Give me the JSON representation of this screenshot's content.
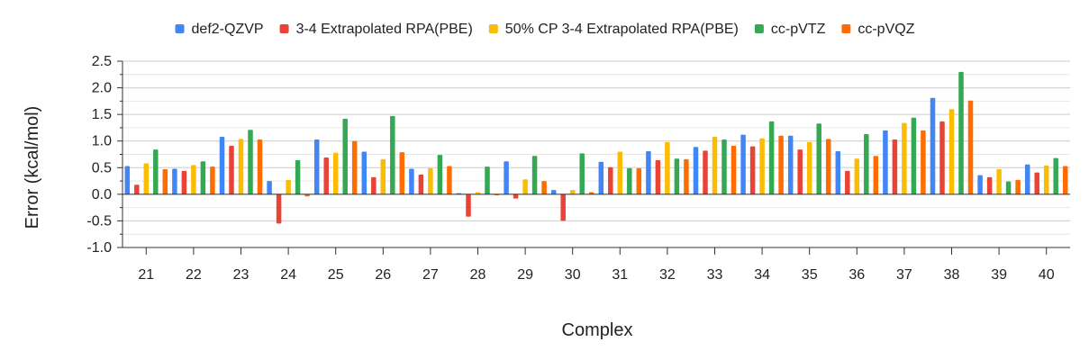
{
  "chart_data": {
    "type": "bar",
    "title": "",
    "xlabel": "Complex",
    "ylabel": "Error (kcal/mol)",
    "ylim": [
      -1.0,
      2.5
    ],
    "ytick_step": 0.5,
    "ytick_labels": [
      "-1.0",
      "-0.5",
      "0.0",
      "0.5",
      "1.0",
      "1.5",
      "2.0",
      "2.5"
    ],
    "grid": true,
    "legend_position": "top",
    "categories": [
      "21",
      "22",
      "23",
      "24",
      "25",
      "26",
      "27",
      "28",
      "29",
      "30",
      "31",
      "32",
      "33",
      "34",
      "35",
      "36",
      "37",
      "38",
      "39",
      "40"
    ],
    "series": [
      {
        "name": "def2-QZVP",
        "color": "#4285F4",
        "values": [
          0.53,
          0.48,
          1.08,
          0.25,
          1.03,
          0.8,
          0.48,
          0.02,
          0.62,
          0.08,
          0.61,
          0.81,
          0.89,
          1.12,
          1.1,
          0.81,
          1.2,
          1.81,
          0.36,
          0.56
        ]
      },
      {
        "name": "3-4 Extrapolated RPA(PBE)",
        "color": "#EA4335",
        "values": [
          0.18,
          0.44,
          0.91,
          -0.55,
          0.69,
          0.32,
          0.37,
          -0.42,
          -0.08,
          -0.5,
          0.51,
          0.64,
          0.82,
          0.9,
          0.84,
          0.44,
          1.03,
          1.37,
          0.32,
          0.41
        ]
      },
      {
        "name": "50% CP 3-4 Extrapolated RPA(PBE)",
        "color": "#FBBC04",
        "values": [
          0.58,
          0.55,
          1.04,
          0.27,
          0.78,
          0.66,
          0.49,
          0.04,
          0.28,
          0.08,
          0.8,
          0.98,
          1.08,
          1.05,
          0.98,
          0.67,
          1.34,
          1.6,
          0.47,
          0.54
        ]
      },
      {
        "name": "cc-pVTZ",
        "color": "#34A853",
        "values": [
          0.84,
          0.62,
          1.21,
          0.64,
          1.42,
          1.47,
          0.74,
          0.52,
          0.72,
          0.77,
          0.49,
          0.67,
          1.03,
          1.37,
          1.33,
          1.13,
          1.44,
          2.3,
          0.24,
          0.68
        ]
      },
      {
        "name": "cc-pVQZ",
        "color": "#FF6D01",
        "values": [
          0.47,
          0.52,
          1.03,
          -0.04,
          1.0,
          0.79,
          0.53,
          -0.02,
          0.25,
          0.04,
          0.49,
          0.66,
          0.91,
          1.1,
          1.04,
          0.72,
          1.2,
          1.76,
          0.27,
          0.53
        ]
      }
    ]
  }
}
